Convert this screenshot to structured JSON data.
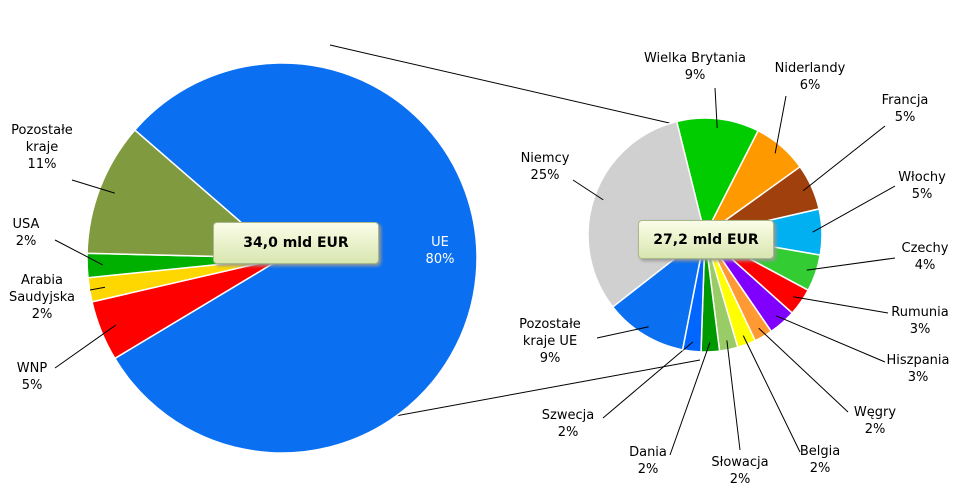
{
  "chart_data": [
    {
      "type": "pie",
      "annotation": "34,0 mld EUR",
      "categories": [
        "UE",
        "WNP",
        "Arabia Saudyjska",
        "USA",
        "Pozostałe kraje"
      ],
      "values": [
        80,
        5,
        2,
        2,
        11
      ],
      "value_labels": [
        "80%",
        "5%",
        "2%",
        "2%",
        "11%"
      ],
      "colors": [
        "#0a6ff0",
        "#ff0000",
        "#ffd700",
        "#00b000",
        "#7f9a3f"
      ]
    },
    {
      "type": "pie",
      "annotation": "27,2 mld EUR",
      "categories": [
        "Wielka Brytania",
        "Niderlandy",
        "Francja",
        "Włochy",
        "Czechy",
        "Rumunia",
        "Hiszpania",
        "Węgry",
        "Belgia",
        "Słowacja",
        "Dania",
        "Szwecja",
        "Pozostałe kraje UE",
        "Niemcy"
      ],
      "values": [
        9,
        6,
        5,
        5,
        4,
        3,
        3,
        2,
        2,
        2,
        2,
        2,
        9,
        25
      ],
      "value_labels": [
        "9%",
        "6%",
        "5%",
        "5%",
        "4%",
        "3%",
        "3%",
        "2%",
        "2%",
        "2%",
        "2%",
        "2%",
        "9%",
        "25%"
      ],
      "colors": [
        "#00cc00",
        "#ff9900",
        "#a0410d",
        "#00b0f0",
        "#33cc33",
        "#ff0000",
        "#8000ff",
        "#ff9933",
        "#ffff00",
        "#99cc66",
        "#009900",
        "#0066ff",
        "#0a6ff0",
        "#d0d0d0"
      ]
    }
  ]
}
